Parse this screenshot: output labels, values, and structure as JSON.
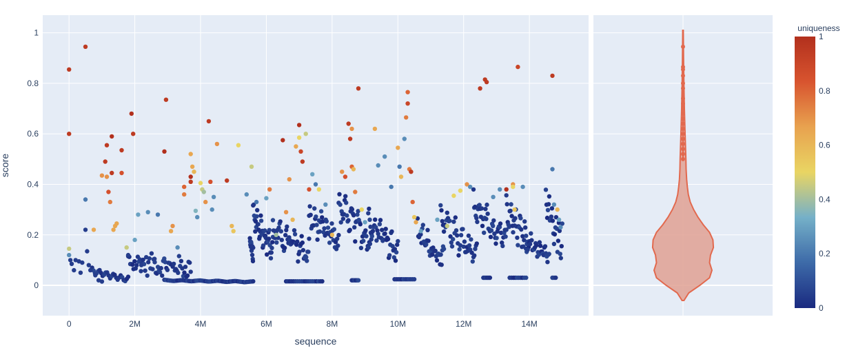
{
  "chart_data": {
    "type": "scatter",
    "xlabel": "sequence",
    "ylabel": "score",
    "xlim": [
      -800000,
      15800000
    ],
    "ylim": [
      -0.12,
      1.07
    ],
    "x_ticks": [
      0,
      2000000,
      4000000,
      6000000,
      8000000,
      10000000,
      12000000,
      14000000
    ],
    "x_tick_labels": [
      "0",
      "2M",
      "4M",
      "6M",
      "8M",
      "10M",
      "12M",
      "14M"
    ],
    "y_ticks": [
      0,
      0.2,
      0.4,
      0.6,
      0.8,
      1
    ],
    "y_tick_labels": [
      "0",
      "0.2",
      "0.4",
      "0.6",
      "0.8",
      "1"
    ],
    "colorbar": {
      "title": "uniqueness",
      "range": [
        0,
        1
      ],
      "ticks": [
        0,
        0.2,
        0.4,
        0.6,
        0.8,
        1
      ],
      "tick_labels": [
        "0",
        "0.2",
        "0.4",
        "0.6",
        "0.8",
        "1"
      ],
      "colorscale": [
        "#1a2a80",
        "#3d6aa8",
        "#75b0c8",
        "#e9d563",
        "#e8a24f",
        "#d8542f",
        "#b2301d"
      ]
    },
    "points": [
      [
        0,
        0.855,
        0.95
      ],
      [
        0,
        0.6,
        0.95
      ],
      [
        0,
        0.145,
        0.45
      ],
      [
        0,
        0.12,
        0.25
      ],
      [
        40000,
        0.1,
        0.05
      ],
      [
        80000,
        0.085,
        0.05
      ],
      [
        150000,
        0.06,
        0.05
      ],
      [
        200000,
        0.1,
        0.05
      ],
      [
        300000,
        0.095,
        0.05
      ],
      [
        350000,
        0.05,
        0.05
      ],
      [
        400000,
        0.09,
        0.05
      ],
      [
        500000,
        0.945,
        0.95
      ],
      [
        500000,
        0.34,
        0.2
      ],
      [
        500000,
        0.22,
        0.05
      ],
      [
        550000,
        0.135,
        0.05
      ],
      [
        600000,
        0.08,
        0.05
      ],
      [
        650000,
        0.06,
        0.05
      ],
      [
        750000,
        0.22,
        0.65
      ],
      [
        800000,
        0.04,
        0.05
      ],
      [
        900000,
        0.02,
        0.05
      ],
      [
        1000000,
        0.435,
        0.7
      ],
      [
        1000000,
        0.015,
        0.05
      ],
      [
        1100000,
        0.49,
        0.95
      ],
      [
        1150000,
        0.43,
        0.7
      ],
      [
        1150000,
        0.555,
        0.95
      ],
      [
        1200000,
        0.37,
        0.85
      ],
      [
        1250000,
        0.33,
        0.75
      ],
      [
        1300000,
        0.59,
        1.0
      ],
      [
        1300000,
        0.445,
        0.95
      ],
      [
        1350000,
        0.22,
        0.65
      ],
      [
        1400000,
        0.235,
        0.65
      ],
      [
        1450000,
        0.245,
        0.65
      ],
      [
        1600000,
        0.445,
        0.85
      ],
      [
        1600000,
        0.535,
        0.95
      ],
      [
        1750000,
        0.15,
        0.45
      ],
      [
        1800000,
        0.12,
        0.05
      ],
      [
        1900000,
        0.68,
        1.0
      ],
      [
        1950000,
        0.6,
        0.95
      ],
      [
        2000000,
        0.18,
        0.3
      ],
      [
        2100000,
        0.28,
        0.3
      ],
      [
        2200000,
        0.08,
        0.05
      ],
      [
        2400000,
        0.29,
        0.25
      ],
      [
        2600000,
        0.105,
        0.05
      ],
      [
        2700000,
        0.28,
        0.2
      ],
      [
        2900000,
        0.53,
        1.0
      ],
      [
        2950000,
        0.735,
        0.95
      ],
      [
        3100000,
        0.215,
        0.65
      ],
      [
        3150000,
        0.235,
        0.7
      ],
      [
        3300000,
        0.15,
        0.25
      ],
      [
        3500000,
        0.39,
        0.8
      ],
      [
        3500000,
        0.36,
        0.75
      ],
      [
        3700000,
        0.52,
        0.65
      ],
      [
        3700000,
        0.43,
        1.0
      ],
      [
        3700000,
        0.41,
        0.95
      ],
      [
        3750000,
        0.47,
        0.65
      ],
      [
        3800000,
        0.45,
        0.6
      ],
      [
        3850000,
        0.295,
        0.35
      ],
      [
        3900000,
        0.27,
        0.25
      ],
      [
        4000000,
        0.405,
        0.5
      ],
      [
        4050000,
        0.38,
        0.45
      ],
      [
        4100000,
        0.37,
        0.4
      ],
      [
        4150000,
        0.33,
        0.7
      ],
      [
        4250000,
        0.65,
        0.95
      ],
      [
        4300000,
        0.41,
        0.85
      ],
      [
        4350000,
        0.3,
        0.25
      ],
      [
        4400000,
        0.35,
        0.25
      ],
      [
        4500000,
        0.56,
        0.7
      ],
      [
        4800000,
        0.415,
        0.95
      ],
      [
        4950000,
        0.235,
        0.6
      ],
      [
        5000000,
        0.215,
        0.55
      ],
      [
        5150000,
        0.555,
        0.5
      ],
      [
        5400000,
        0.36,
        0.25
      ],
      [
        5550000,
        0.47,
        0.45
      ],
      [
        5700000,
        0.33,
        0.2
      ],
      [
        6000000,
        0.345,
        0.3
      ],
      [
        6100000,
        0.38,
        0.75
      ],
      [
        6300000,
        0.2,
        0.4
      ],
      [
        6500000,
        0.575,
        1.0
      ],
      [
        6600000,
        0.29,
        0.7
      ],
      [
        6700000,
        0.42,
        0.7
      ],
      [
        6800000,
        0.26,
        0.6
      ],
      [
        6900000,
        0.55,
        0.65
      ],
      [
        7000000,
        0.635,
        1.0
      ],
      [
        7000000,
        0.585,
        0.5
      ],
      [
        7050000,
        0.53,
        0.9
      ],
      [
        7100000,
        0.49,
        0.95
      ],
      [
        7200000,
        0.6,
        0.45
      ],
      [
        7300000,
        0.38,
        0.85
      ],
      [
        7400000,
        0.44,
        0.3
      ],
      [
        7500000,
        0.4,
        0.2
      ],
      [
        7600000,
        0.38,
        0.5
      ],
      [
        7800000,
        0.32,
        0.25
      ],
      [
        8000000,
        0.2,
        0.6
      ],
      [
        8300000,
        0.45,
        0.7
      ],
      [
        8400000,
        0.43,
        0.85
      ],
      [
        8500000,
        0.64,
        0.95
      ],
      [
        8550000,
        0.58,
        0.95
      ],
      [
        8600000,
        0.62,
        0.7
      ],
      [
        8600000,
        0.47,
        0.8
      ],
      [
        8650000,
        0.46,
        0.6
      ],
      [
        8700000,
        0.37,
        0.75
      ],
      [
        8800000,
        0.78,
        0.95
      ],
      [
        8900000,
        0.3,
        0.5
      ],
      [
        9000000,
        0.25,
        0.3
      ],
      [
        9300000,
        0.62,
        0.65
      ],
      [
        9400000,
        0.475,
        0.25
      ],
      [
        9600000,
        0.51,
        0.25
      ],
      [
        9800000,
        0.39,
        0.2
      ],
      [
        10000000,
        0.545,
        0.65
      ],
      [
        10050000,
        0.47,
        0.2
      ],
      [
        10100000,
        0.43,
        0.6
      ],
      [
        10200000,
        0.58,
        0.25
      ],
      [
        10250000,
        0.665,
        0.75
      ],
      [
        10300000,
        0.765,
        0.8
      ],
      [
        10300000,
        0.72,
        0.9
      ],
      [
        10350000,
        0.46,
        0.75
      ],
      [
        10400000,
        0.45,
        0.95
      ],
      [
        10450000,
        0.33,
        0.8
      ],
      [
        10500000,
        0.27,
        0.55
      ],
      [
        10550000,
        0.25,
        0.65
      ],
      [
        10700000,
        0.215,
        0.3
      ],
      [
        11200000,
        0.26,
        0.3
      ],
      [
        11500000,
        0.235,
        0.45
      ],
      [
        11700000,
        0.355,
        0.5
      ],
      [
        11900000,
        0.375,
        0.5
      ],
      [
        12100000,
        0.4,
        0.7
      ],
      [
        12200000,
        0.39,
        0.25
      ],
      [
        12500000,
        0.78,
        0.95
      ],
      [
        12650000,
        0.815,
        0.95
      ],
      [
        12700000,
        0.805,
        0.95
      ],
      [
        12900000,
        0.35,
        0.25
      ],
      [
        13100000,
        0.38,
        0.25
      ],
      [
        13300000,
        0.38,
        1.0
      ],
      [
        13500000,
        0.4,
        0.7
      ],
      [
        13500000,
        0.39,
        0.5
      ],
      [
        13550000,
        0.3,
        0.55
      ],
      [
        13650000,
        0.865,
        0.9
      ],
      [
        13800000,
        0.39,
        0.25
      ],
      [
        14700000,
        0.83,
        0.95
      ],
      [
        14700000,
        0.46,
        0.2
      ],
      [
        14750000,
        0.32,
        0.25
      ],
      [
        14850000,
        0.3,
        0.6
      ],
      [
        14900000,
        0.26,
        0.3
      ],
      [
        14950000,
        0.23,
        0.25
      ]
    ],
    "segments": [
      [
        700000,
        1800000,
        0.07,
        0.01,
        0.0,
        25
      ],
      [
        1800000,
        3700000,
        0.1,
        0.06,
        0.08,
        60
      ],
      [
        2900000,
        5600000,
        0.022,
        0.012,
        0.0,
        70
      ],
      [
        5500000,
        5600000,
        0.2,
        0.09,
        0.03,
        15
      ],
      [
        5600000,
        6200000,
        0.32,
        0.1,
        0.06,
        40
      ],
      [
        6200000,
        7300000,
        0.24,
        0.1,
        0.07,
        50
      ],
      [
        6600000,
        7700000,
        0.016,
        0.016,
        0.0,
        20
      ],
      [
        7300000,
        8200000,
        0.3,
        0.14,
        0.08,
        40
      ],
      [
        8200000,
        9200000,
        0.35,
        0.13,
        0.08,
        45
      ],
      [
        9100000,
        10000000,
        0.3,
        0.1,
        0.07,
        40
      ],
      [
        9900000,
        10500000,
        0.024,
        0.024,
        0.0,
        12
      ],
      [
        10600000,
        11400000,
        0.24,
        0.07,
        0.07,
        35
      ],
      [
        11300000,
        12400000,
        0.3,
        0.08,
        0.07,
        45
      ],
      [
        12300000,
        13300000,
        0.35,
        0.14,
        0.07,
        45
      ],
      [
        13300000,
        14000000,
        0.33,
        0.12,
        0.07,
        35
      ],
      [
        13900000,
        14600000,
        0.2,
        0.09,
        0.05,
        30
      ],
      [
        14500000,
        15000000,
        0.37,
        0.11,
        0.07,
        25
      ],
      [
        12600000,
        12800000,
        0.03,
        0.03,
        0.0,
        6
      ],
      [
        13400000,
        13900000,
        0.03,
        0.03,
        0.0,
        10
      ],
      [
        8600000,
        8800000,
        0.02,
        0.02,
        0.0,
        6
      ],
      [
        14700000,
        14800000,
        0.03,
        0.03,
        0.0,
        3
      ]
    ],
    "violin": {
      "color": "#e2694e",
      "fill": "#e0a193",
      "y_range": [
        -0.06,
        1.01
      ],
      "box_outliers": [
        0.5,
        0.52,
        0.54,
        0.56,
        0.58,
        0.6,
        0.62,
        0.64,
        0.66,
        0.68,
        0.7,
        0.72,
        0.74,
        0.78,
        0.8,
        0.83,
        0.855,
        0.865,
        0.945
      ],
      "density": [
        [
          -0.06,
          0.02
        ],
        [
          -0.03,
          0.12
        ],
        [
          0.0,
          0.35
        ],
        [
          0.03,
          0.55
        ],
        [
          0.06,
          0.6
        ],
        [
          0.09,
          0.55
        ],
        [
          0.12,
          0.57
        ],
        [
          0.15,
          0.63
        ],
        [
          0.18,
          0.62
        ],
        [
          0.21,
          0.55
        ],
        [
          0.24,
          0.42
        ],
        [
          0.27,
          0.31
        ],
        [
          0.3,
          0.22
        ],
        [
          0.33,
          0.15
        ],
        [
          0.36,
          0.11
        ],
        [
          0.39,
          0.09
        ],
        [
          0.42,
          0.075
        ],
        [
          0.46,
          0.065
        ],
        [
          0.5,
          0.06
        ],
        [
          0.56,
          0.05
        ],
        [
          0.62,
          0.04
        ],
        [
          0.7,
          0.028
        ],
        [
          0.8,
          0.018
        ],
        [
          0.9,
          0.012
        ],
        [
          1.01,
          0.005
        ]
      ]
    }
  }
}
